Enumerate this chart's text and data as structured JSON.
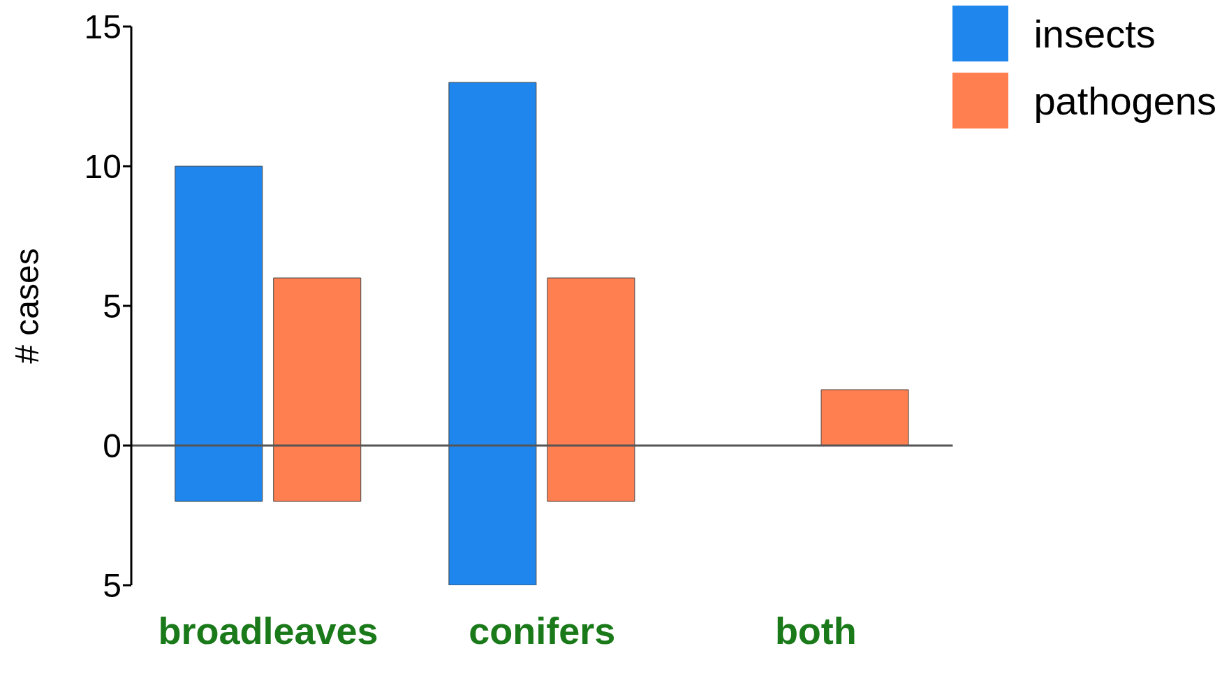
{
  "chart_data": {
    "type": "bar",
    "ylabel": "# cases",
    "categories": [
      "broadleaves",
      "conifers",
      "both"
    ],
    "series": [
      {
        "name": "insects",
        "color": "#1e86ec",
        "base": [
          -2,
          -5,
          null
        ],
        "values": [
          12,
          18,
          null
        ]
      },
      {
        "name": "pathogens",
        "color": "#ff7f50",
        "base": [
          -2,
          -2,
          0
        ],
        "values": [
          8,
          8,
          2
        ]
      }
    ],
    "ylim": [
      -5,
      15
    ],
    "yticks": [
      {
        "value": -5,
        "label": "5"
      },
      0,
      5,
      10,
      15
    ],
    "ref_lines": [
      {
        "axis": "y",
        "value": 0,
        "color": "#555555"
      }
    ],
    "grid": false,
    "legend": "top right"
  }
}
